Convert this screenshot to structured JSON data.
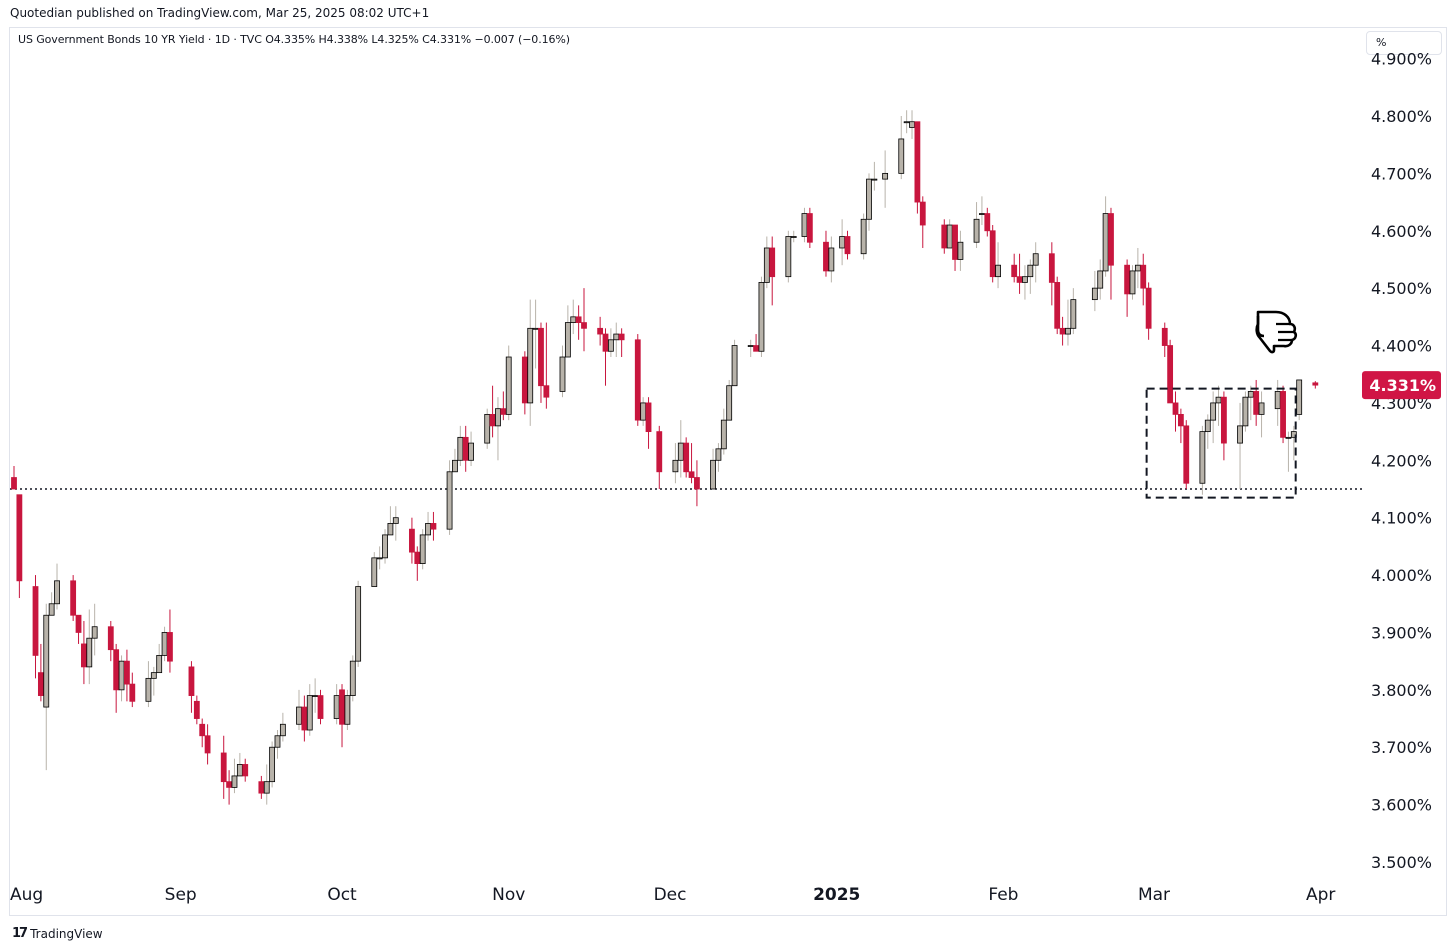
{
  "header": {
    "publisher_line": "Quotedian published on TradingView.com, Mar 25, 2025 08:02 UTC+1",
    "legend_line": "US Government Bonds 10 YR Yield · 1D · TVC  O4.335%  H4.338%  L4.325%  C4.331%  −0.007 (−0.16%)"
  },
  "scale_button": {
    "label": "%"
  },
  "footer": {
    "logo": "17",
    "brand": "TradingView"
  },
  "colors": {
    "up": "#b8b3aa",
    "down": "#c8163e",
    "price_label_bg": "#d01545",
    "reference_line": "#131722"
  },
  "annotations": {
    "pointing_hand_icon": "pointing-down-hand",
    "support_line_level": 4.15,
    "range_box": {
      "from_date": "2025-02-28",
      "to_date": "2025-03-24",
      "low": 4.135,
      "high": 4.325
    }
  },
  "chart_data": {
    "type": "candlestick",
    "title": "US Government Bonds 10 YR Yield",
    "interval": "1D",
    "source": "TVC",
    "ylim": [
      3.45,
      4.92
    ],
    "y_ticks": [
      3.5,
      3.6,
      3.7,
      3.8,
      3.9,
      4.0,
      4.1,
      4.2,
      4.3,
      4.4,
      4.5,
      4.6,
      4.7,
      4.8,
      4.9
    ],
    "y_tick_labels": [
      "3.500%",
      "3.600%",
      "3.700%",
      "3.800%",
      "3.900%",
      "4.000%",
      "4.100%",
      "4.200%",
      "4.300%",
      "4.400%",
      "4.500%",
      "4.600%",
      "4.700%",
      "4.800%",
      "4.900%"
    ],
    "x_tick_dates": [
      "2024-08-01",
      "2024-09-01",
      "2024-10-01",
      "2024-11-01",
      "2024-12-01",
      "2025-01-01",
      "2025-02-01",
      "2025-03-01",
      "2025-04-01"
    ],
    "x_tick_labels": [
      "Aug",
      "Sep",
      "Oct",
      "Nov",
      "Dec",
      "2025",
      "Feb",
      "Mar",
      "Apr"
    ],
    "last_price_label": "4.331%",
    "last_price": 4.331,
    "columns": [
      "date",
      "open",
      "high",
      "low",
      "close"
    ],
    "candles": [
      [
        "2024-08-01",
        4.17,
        4.19,
        4.15,
        4.15
      ],
      [
        "2024-08-02",
        4.14,
        4.14,
        3.96,
        3.99
      ],
      [
        "2024-08-05",
        3.98,
        4.0,
        3.82,
        3.86
      ],
      [
        "2024-08-06",
        3.83,
        3.88,
        3.78,
        3.79
      ],
      [
        "2024-08-07",
        3.77,
        3.95,
        3.66,
        3.93
      ],
      [
        "2024-08-08",
        3.93,
        3.97,
        3.93,
        3.95
      ],
      [
        "2024-08-09",
        3.95,
        4.02,
        3.94,
        3.99
      ],
      [
        "2024-08-12",
        3.99,
        4.0,
        3.92,
        3.93
      ],
      [
        "2024-08-13",
        3.93,
        3.93,
        3.88,
        3.9
      ],
      [
        "2024-08-14",
        3.88,
        3.92,
        3.81,
        3.84
      ],
      [
        "2024-08-15",
        3.84,
        3.94,
        3.81,
        3.89
      ],
      [
        "2024-08-16",
        3.89,
        3.95,
        3.86,
        3.91
      ],
      [
        "2024-08-19",
        3.91,
        3.92,
        3.85,
        3.87
      ],
      [
        "2024-08-20",
        3.87,
        3.88,
        3.76,
        3.8
      ],
      [
        "2024-08-21",
        3.8,
        3.86,
        3.78,
        3.85
      ],
      [
        "2024-08-22",
        3.85,
        3.87,
        3.78,
        3.81
      ],
      [
        "2024-08-23",
        3.81,
        3.83,
        3.77,
        3.78
      ],
      [
        "2024-08-26",
        3.78,
        3.85,
        3.77,
        3.82
      ],
      [
        "2024-08-27",
        3.82,
        3.84,
        3.79,
        3.83
      ],
      [
        "2024-08-28",
        3.83,
        3.88,
        3.83,
        3.86
      ],
      [
        "2024-08-29",
        3.86,
        3.91,
        3.85,
        3.9
      ],
      [
        "2024-08-30",
        3.9,
        3.94,
        3.83,
        3.85
      ],
      [
        "2024-09-03",
        3.84,
        3.85,
        3.76,
        3.79
      ],
      [
        "2024-09-04",
        3.78,
        3.79,
        3.74,
        3.75
      ],
      [
        "2024-09-05",
        3.74,
        3.75,
        3.7,
        3.72
      ],
      [
        "2024-09-06",
        3.72,
        3.74,
        3.67,
        3.69
      ],
      [
        "2024-09-09",
        3.69,
        3.72,
        3.61,
        3.64
      ],
      [
        "2024-09-10",
        3.64,
        3.66,
        3.6,
        3.63
      ],
      [
        "2024-09-11",
        3.63,
        3.68,
        3.62,
        3.65
      ],
      [
        "2024-09-12",
        3.65,
        3.69,
        3.65,
        3.67
      ],
      [
        "2024-09-13",
        3.67,
        3.68,
        3.64,
        3.65
      ],
      [
        "2024-09-16",
        3.64,
        3.65,
        3.61,
        3.62
      ],
      [
        "2024-09-17",
        3.62,
        3.67,
        3.6,
        3.64
      ],
      [
        "2024-09-18",
        3.64,
        3.71,
        3.63,
        3.7
      ],
      [
        "2024-09-19",
        3.7,
        3.73,
        3.68,
        3.72
      ],
      [
        "2024-09-20",
        3.72,
        3.76,
        3.71,
        3.74
      ],
      [
        "2024-09-23",
        3.74,
        3.8,
        3.73,
        3.77
      ],
      [
        "2024-09-24",
        3.77,
        3.79,
        3.71,
        3.73
      ],
      [
        "2024-09-25",
        3.73,
        3.81,
        3.72,
        3.79
      ],
      [
        "2024-09-26",
        3.79,
        3.82,
        3.76,
        3.79
      ],
      [
        "2024-09-27",
        3.79,
        3.8,
        3.74,
        3.75
      ],
      [
        "2024-09-30",
        3.75,
        3.81,
        3.74,
        3.79
      ],
      [
        "2024-10-01",
        3.8,
        3.81,
        3.7,
        3.74
      ],
      [
        "2024-10-02",
        3.74,
        3.8,
        3.73,
        3.79
      ],
      [
        "2024-10-03",
        3.79,
        3.86,
        3.78,
        3.85
      ],
      [
        "2024-10-04",
        3.85,
        3.99,
        3.84,
        3.98
      ],
      [
        "2024-10-07",
        3.98,
        4.04,
        3.98,
        4.03
      ],
      [
        "2024-10-08",
        4.03,
        4.05,
        4.01,
        4.03
      ],
      [
        "2024-10-09",
        4.03,
        4.08,
        4.02,
        4.07
      ],
      [
        "2024-10-10",
        4.07,
        4.12,
        4.07,
        4.09
      ],
      [
        "2024-10-11",
        4.09,
        4.12,
        4.06,
        4.1
      ],
      [
        "2024-10-14",
        4.08,
        4.1,
        4.02,
        4.04
      ],
      [
        "2024-10-15",
        4.04,
        4.05,
        3.99,
        4.02
      ],
      [
        "2024-10-16",
        4.02,
        4.08,
        4.01,
        4.07
      ],
      [
        "2024-10-17",
        4.07,
        4.11,
        4.06,
        4.09
      ],
      [
        "2024-10-18",
        4.09,
        4.11,
        4.06,
        4.08
      ],
      [
        "2024-10-21",
        4.08,
        4.2,
        4.07,
        4.18
      ],
      [
        "2024-10-22",
        4.18,
        4.22,
        4.18,
        4.2
      ],
      [
        "2024-10-23",
        4.2,
        4.26,
        4.19,
        4.24
      ],
      [
        "2024-10-24",
        4.24,
        4.26,
        4.18,
        4.2
      ],
      [
        "2024-10-25",
        4.2,
        4.25,
        4.19,
        4.23
      ],
      [
        "2024-10-28",
        4.23,
        4.29,
        4.22,
        4.28
      ],
      [
        "2024-10-29",
        4.28,
        4.33,
        4.24,
        4.26
      ],
      [
        "2024-10-30",
        4.26,
        4.31,
        4.2,
        4.29
      ],
      [
        "2024-10-31",
        4.29,
        4.32,
        4.27,
        4.28
      ],
      [
        "2024-11-01",
        4.28,
        4.4,
        4.27,
        4.38
      ],
      [
        "2024-11-04",
        4.38,
        4.39,
        4.28,
        4.3
      ],
      [
        "2024-11-05",
        4.3,
        4.48,
        4.26,
        4.43
      ],
      [
        "2024-11-06",
        4.43,
        4.48,
        4.36,
        4.43
      ],
      [
        "2024-11-07",
        4.43,
        4.44,
        4.3,
        4.33
      ],
      [
        "2024-11-08",
        4.33,
        4.44,
        4.29,
        4.31
      ],
      [
        "2024-11-11",
        4.32,
        4.4,
        4.31,
        4.38
      ],
      [
        "2024-11-12",
        4.38,
        4.47,
        4.38,
        4.44
      ],
      [
        "2024-11-13",
        4.44,
        4.48,
        4.42,
        4.45
      ],
      [
        "2024-11-14",
        4.45,
        4.47,
        4.41,
        4.44
      ],
      [
        "2024-11-15",
        4.44,
        4.5,
        4.39,
        4.43
      ],
      [
        "2024-11-18",
        4.43,
        4.45,
        4.4,
        4.42
      ],
      [
        "2024-11-19",
        4.42,
        4.43,
        4.33,
        4.39
      ],
      [
        "2024-11-20",
        4.39,
        4.43,
        4.38,
        4.41
      ],
      [
        "2024-11-21",
        4.41,
        4.44,
        4.38,
        4.42
      ],
      [
        "2024-11-22",
        4.42,
        4.43,
        4.38,
        4.41
      ],
      [
        "2024-11-25",
        4.41,
        4.42,
        4.26,
        4.27
      ],
      [
        "2024-11-26",
        4.27,
        4.31,
        4.26,
        4.3
      ],
      [
        "2024-11-27",
        4.3,
        4.31,
        4.22,
        4.25
      ],
      [
        "2024-11-29",
        4.25,
        4.26,
        4.15,
        4.18
      ],
      [
        "2024-12-02",
        4.18,
        4.23,
        4.16,
        4.2
      ],
      [
        "2024-12-03",
        4.2,
        4.27,
        4.17,
        4.23
      ],
      [
        "2024-12-04",
        4.23,
        4.24,
        4.17,
        4.18
      ],
      [
        "2024-12-05",
        4.18,
        4.23,
        4.16,
        4.17
      ],
      [
        "2024-12-06",
        4.17,
        4.2,
        4.12,
        4.15
      ],
      [
        "2024-12-09",
        4.15,
        4.22,
        4.15,
        4.2
      ],
      [
        "2024-12-10",
        4.2,
        4.23,
        4.18,
        4.22
      ],
      [
        "2024-12-11",
        4.22,
        4.29,
        4.21,
        4.27
      ],
      [
        "2024-12-12",
        4.27,
        4.34,
        4.27,
        4.33
      ],
      [
        "2024-12-13",
        4.33,
        4.41,
        4.33,
        4.4
      ],
      [
        "2024-12-16",
        4.4,
        4.41,
        4.38,
        4.4
      ],
      [
        "2024-12-17",
        4.4,
        4.42,
        4.39,
        4.39
      ],
      [
        "2024-12-18",
        4.39,
        4.52,
        4.38,
        4.51
      ],
      [
        "2024-12-19",
        4.51,
        4.59,
        4.5,
        4.57
      ],
      [
        "2024-12-20",
        4.57,
        4.59,
        4.47,
        4.52
      ],
      [
        "2024-12-23",
        4.52,
        4.6,
        4.51,
        4.59
      ],
      [
        "2024-12-24",
        4.59,
        4.6,
        4.58,
        4.59
      ],
      [
        "2024-12-26",
        4.59,
        4.64,
        4.58,
        4.63
      ],
      [
        "2024-12-27",
        4.63,
        4.64,
        4.57,
        4.58
      ],
      [
        "2024-12-30",
        4.58,
        4.6,
        4.52,
        4.53
      ],
      [
        "2024-12-31",
        4.53,
        4.59,
        4.51,
        4.57
      ],
      [
        "2025-01-02",
        4.57,
        4.62,
        4.54,
        4.59
      ],
      [
        "2025-01-03",
        4.59,
        4.6,
        4.55,
        4.56
      ],
      [
        "2025-01-06",
        4.56,
        4.63,
        4.55,
        4.62
      ],
      [
        "2025-01-07",
        4.62,
        4.7,
        4.6,
        4.69
      ],
      [
        "2025-01-08",
        4.69,
        4.72,
        4.67,
        4.69
      ],
      [
        "2025-01-10",
        4.69,
        4.74,
        4.64,
        4.7
      ],
      [
        "2025-01-13",
        4.7,
        4.8,
        4.69,
        4.76
      ],
      [
        "2025-01-14",
        4.79,
        4.81,
        4.77,
        4.79
      ],
      [
        "2025-01-15",
        4.78,
        4.81,
        4.76,
        4.79
      ],
      [
        "2025-01-16",
        4.79,
        4.79,
        4.63,
        4.65
      ],
      [
        "2025-01-17",
        4.65,
        4.66,
        4.57,
        4.61
      ],
      [
        "2025-01-21",
        4.61,
        4.62,
        4.56,
        4.57
      ],
      [
        "2025-01-22",
        4.57,
        4.62,
        4.57,
        4.61
      ],
      [
        "2025-01-23",
        4.61,
        4.6,
        4.53,
        4.55
      ],
      [
        "2025-01-24",
        4.55,
        4.6,
        4.53,
        4.58
      ],
      [
        "2025-01-27",
        4.58,
        4.65,
        4.57,
        4.62
      ],
      [
        "2025-01-28",
        4.63,
        4.66,
        4.61,
        4.63
      ],
      [
        "2025-01-29",
        4.63,
        4.64,
        4.59,
        4.6
      ],
      [
        "2025-01-30",
        4.6,
        4.61,
        4.51,
        4.52
      ],
      [
        "2025-01-31",
        4.52,
        4.58,
        4.5,
        4.54
      ],
      [
        "2025-02-03",
        4.54,
        4.56,
        4.51,
        4.52
      ],
      [
        "2025-02-04",
        4.52,
        4.56,
        4.49,
        4.51
      ],
      [
        "2025-02-05",
        4.51,
        4.54,
        4.48,
        4.52
      ],
      [
        "2025-02-06",
        4.52,
        4.55,
        4.49,
        4.54
      ],
      [
        "2025-02-07",
        4.54,
        4.58,
        4.51,
        4.56
      ],
      [
        "2025-02-10",
        4.56,
        4.58,
        4.47,
        4.51
      ],
      [
        "2025-02-11",
        4.51,
        4.52,
        4.42,
        4.43
      ],
      [
        "2025-02-12",
        4.43,
        4.45,
        4.4,
        4.42
      ],
      [
        "2025-02-13",
        4.42,
        4.48,
        4.4,
        4.43
      ],
      [
        "2025-02-14",
        4.43,
        4.5,
        4.42,
        4.48
      ],
      [
        "2025-02-18",
        4.48,
        4.53,
        4.46,
        4.5
      ],
      [
        "2025-02-19",
        4.5,
        4.55,
        4.48,
        4.53
      ],
      [
        "2025-02-20",
        4.53,
        4.66,
        4.52,
        4.63
      ],
      [
        "2025-02-21",
        4.63,
        4.64,
        4.48,
        4.54
      ],
      [
        "2025-02-24",
        4.54,
        4.55,
        4.45,
        4.49
      ],
      [
        "2025-02-25",
        4.49,
        4.54,
        4.48,
        4.53
      ],
      [
        "2025-02-26",
        4.53,
        4.57,
        4.5,
        4.54
      ],
      [
        "2025-02-27",
        4.54,
        4.56,
        4.47,
        4.5
      ],
      [
        "2025-02-28",
        4.5,
        4.51,
        4.41,
        4.43
      ],
      [
        "2025-03-03",
        4.43,
        4.44,
        4.38,
        4.4
      ],
      [
        "2025-03-04",
        4.4,
        4.41,
        4.3,
        4.3
      ],
      [
        "2025-03-05",
        4.3,
        4.32,
        4.25,
        4.28
      ],
      [
        "2025-03-06",
        4.28,
        4.29,
        4.23,
        4.26
      ],
      [
        "2025-03-07",
        4.26,
        4.27,
        4.15,
        4.16
      ],
      [
        "2025-03-10",
        4.16,
        4.26,
        4.14,
        4.25
      ],
      [
        "2025-03-11",
        4.25,
        4.28,
        4.22,
        4.27
      ],
      [
        "2025-03-12",
        4.27,
        4.32,
        4.23,
        4.3
      ],
      [
        "2025-03-13",
        4.3,
        4.33,
        4.26,
        4.31
      ],
      [
        "2025-03-14",
        4.31,
        4.32,
        4.2,
        4.23
      ],
      [
        "2025-03-17",
        4.23,
        4.3,
        4.15,
        4.26
      ],
      [
        "2025-03-18",
        4.26,
        4.32,
        4.25,
        4.31
      ],
      [
        "2025-03-19",
        4.31,
        4.33,
        4.27,
        4.32
      ],
      [
        "2025-03-20",
        4.32,
        4.34,
        4.26,
        4.28
      ],
      [
        "2025-03-21",
        4.28,
        4.32,
        4.24,
        4.3
      ],
      [
        "2025-03-24",
        4.29,
        4.34,
        4.26,
        4.32
      ],
      [
        "2025-03-25",
        4.32,
        4.33,
        4.23,
        4.24
      ],
      [
        "2025-03-26",
        4.24,
        4.25,
        4.18,
        4.24
      ],
      [
        "2025-03-27",
        4.24,
        4.26,
        4.2,
        4.25
      ],
      [
        "2025-03-28",
        4.28,
        4.34,
        4.27,
        4.34
      ],
      [
        "2025-03-31",
        4.335,
        4.338,
        4.325,
        4.331
      ]
    ]
  }
}
